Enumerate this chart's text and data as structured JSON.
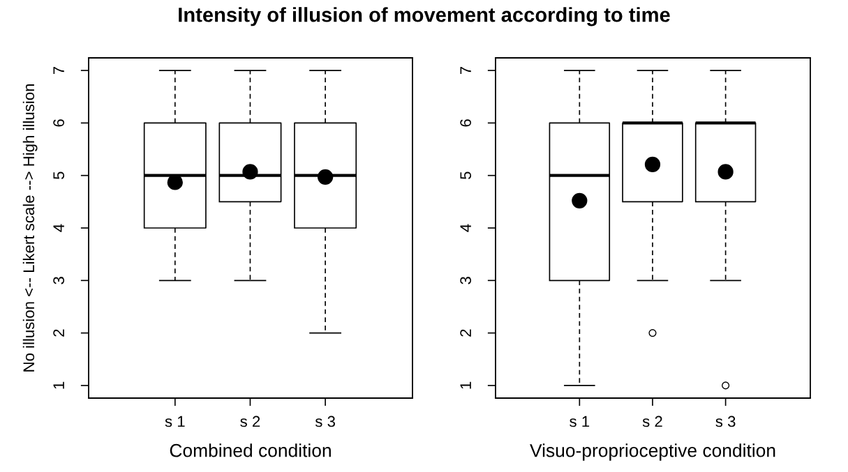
{
  "chart_data": [
    {
      "type": "box",
      "title": "Intensity of illusion of movement according to time",
      "xlabel": "Combined condition",
      "ylabel": "No illusion <-- Likert scale --> High illusion",
      "categories": [
        "s 1",
        "s 2",
        "s 3"
      ],
      "ylim": [
        0.76,
        7.24
      ],
      "yticks": [
        1,
        2,
        3,
        4,
        5,
        6,
        7
      ],
      "grid": false,
      "boxes": [
        {
          "low": 3,
          "q1": 4,
          "median": 5,
          "q3": 6,
          "high": 7,
          "mean": 4.87
        },
        {
          "low": 3,
          "q1": 4.5,
          "median": 5,
          "q3": 6,
          "high": 7,
          "mean": 5.07
        },
        {
          "low": 2,
          "q1": 4,
          "median": 5,
          "q3": 6,
          "high": 7,
          "mean": 4.97
        }
      ]
    },
    {
      "type": "box",
      "xlabel": "Visuo-proprioceptive condition",
      "categories": [
        "s 1",
        "s 2",
        "s 3"
      ],
      "ylim": [
        0.76,
        7.24
      ],
      "yticks": [
        1,
        2,
        3,
        4,
        5,
        6,
        7
      ],
      "grid": false,
      "boxes": [
        {
          "low": 1,
          "q1": 3,
          "median": 5,
          "q3": 6,
          "high": 7,
          "mean": 4.52
        },
        {
          "low": 3,
          "q1": 4.5,
          "median": 6,
          "q3": 6,
          "high": 7,
          "mean": 5.21,
          "outliers": [
            2
          ]
        },
        {
          "low": 3,
          "q1": 4.5,
          "median": 6,
          "q3": 6,
          "high": 7,
          "mean": 5.07,
          "outliers": [
            1
          ]
        }
      ]
    }
  ]
}
